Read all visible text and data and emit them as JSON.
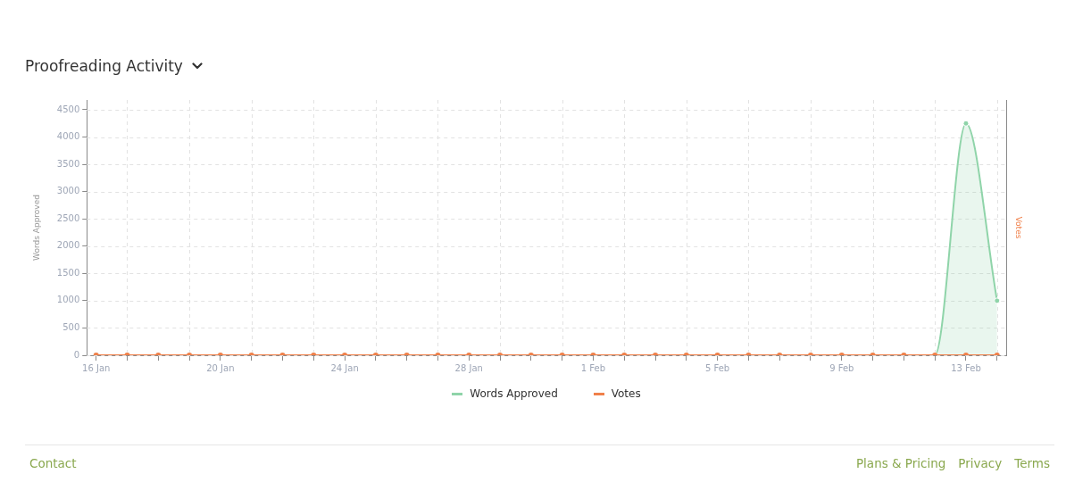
{
  "chart_data": {
    "type": "line",
    "title": "Proofreading Activity",
    "ylabel": "Words Approved",
    "y2label": "Votes",
    "categories": [
      "16 Jan",
      null,
      null,
      null,
      "20 Jan",
      null,
      null,
      null,
      "24 Jan",
      null,
      null,
      null,
      "28 Jan",
      null,
      null,
      null,
      "1 Feb",
      null,
      null,
      null,
      "5 Feb",
      null,
      null,
      null,
      "9 Feb",
      null,
      null,
      null,
      "13 Feb",
      null
    ],
    "series": [
      {
        "name": "Words Approved",
        "type": "area",
        "color": "#8fd4a9",
        "values": [
          0,
          0,
          0,
          0,
          0,
          0,
          0,
          0,
          0,
          0,
          0,
          0,
          0,
          0,
          0,
          0,
          0,
          0,
          0,
          0,
          0,
          0,
          0,
          0,
          0,
          0,
          0,
          0,
          4250,
          1000
        ]
      },
      {
        "name": "Votes",
        "color": "#f0804a",
        "values": [
          0,
          0,
          0,
          0,
          0,
          0,
          0,
          0,
          0,
          0,
          0,
          0,
          0,
          0,
          0,
          0,
          0,
          0,
          0,
          0,
          0,
          0,
          0,
          0,
          0,
          0,
          0,
          0,
          0,
          0
        ]
      }
    ],
    "ylim": [
      0,
      4680
    ],
    "yticks": [
      0,
      500,
      1000,
      1500,
      2000,
      2500,
      3000,
      3500,
      4000,
      4500
    ],
    "grid": true,
    "legend": "bottom",
    "marker": "circle",
    "annotations": [
      "Contact",
      "Plans & Pricing",
      "Privacy",
      "Terms"
    ]
  }
}
